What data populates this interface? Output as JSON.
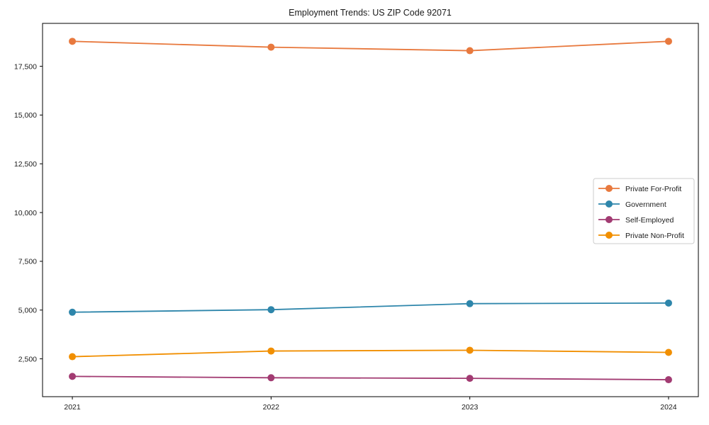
{
  "chart_data": {
    "type": "line",
    "title": "Employment Trends: US ZIP Code 92071",
    "xlabel": "",
    "ylabel": "",
    "grid": false,
    "legend_position": "center right",
    "x": [
      2021,
      2022,
      2023,
      2024
    ],
    "x_tick_labels": [
      "2021",
      "2022",
      "2023",
      "2024"
    ],
    "y_tick_values": [
      2500,
      5000,
      7500,
      10000,
      12500,
      15000,
      17500
    ],
    "y_tick_labels": [
      "2,500",
      "5,000",
      "7,500",
      "10,000",
      "12,500",
      "15,000",
      "17,500"
    ],
    "xlim": [
      2020.85,
      2024.15
    ],
    "ylim": [
      560,
      19700
    ],
    "series": [
      {
        "name": "Private For-Profit",
        "color": "#e8793e",
        "values": [
          18780,
          18480,
          18300,
          18780
        ]
      },
      {
        "name": "Government",
        "color": "#2e86ab",
        "values": [
          4890,
          5020,
          5330,
          5360
        ]
      },
      {
        "name": "Self-Employed",
        "color": "#a23b72",
        "values": [
          1600,
          1530,
          1500,
          1430
        ]
      },
      {
        "name": "Private Non-Profit",
        "color": "#f18f01",
        "values": [
          2610,
          2900,
          2940,
          2830
        ]
      }
    ]
  }
}
